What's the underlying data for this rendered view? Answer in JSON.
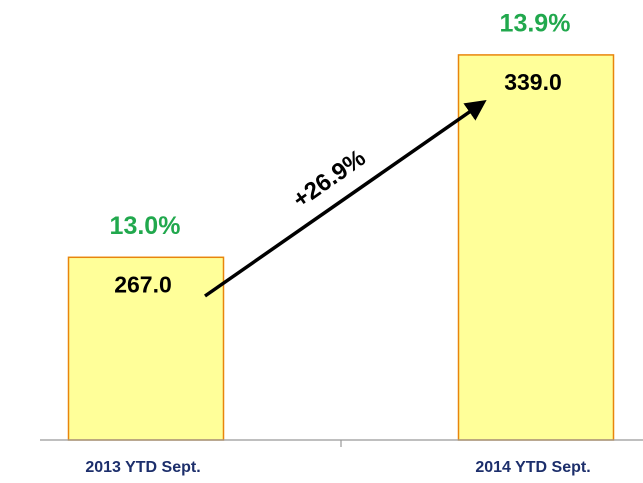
{
  "chart_data": {
    "type": "bar",
    "categories": [
      "2013 YTD Sept.",
      "2014 YTD Sept."
    ],
    "values": [
      267,
      339
    ],
    "value_labels": [
      "267.0",
      "339.0"
    ],
    "top_labels": [
      "13.0%",
      "13.9%"
    ],
    "growth_label": "+26.9%",
    "color": "#ffff99",
    "edge_color": "#e8850c",
    "label_color": "#21a84d",
    "ylim": [
      202,
      350
    ]
  }
}
